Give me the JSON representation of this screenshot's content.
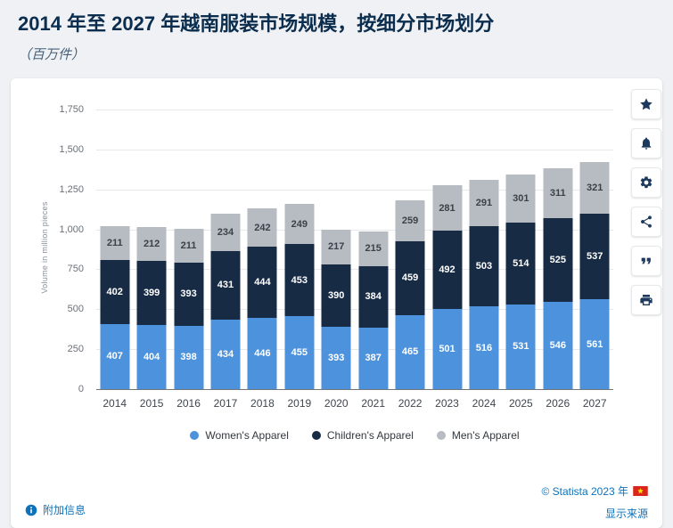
{
  "header": {
    "title": "2014 年至 2027 年越南服装市场规模，按细分市场划分",
    "subtitle": "（百万件）"
  },
  "chart_data": {
    "type": "bar",
    "stacked": true,
    "title": "2014 年至 2027 年越南服装市场规模，按细分市场划分",
    "subtitle": "（百万件）",
    "xlabel": "",
    "ylabel": "Volume in million pieces",
    "ylim": [
      0,
      1750
    ],
    "ytick_step": 250,
    "yticks": [
      "0",
      "250",
      "500",
      "750",
      "1,000",
      "1,250",
      "1,500",
      "1,750"
    ],
    "grid": true,
    "legend_position": "bottom",
    "categories": [
      "2014",
      "2015",
      "2016",
      "2017",
      "2018",
      "2019",
      "2020",
      "2021",
      "2022",
      "2023",
      "2024",
      "2025",
      "2026",
      "2027"
    ],
    "series": [
      {
        "name": "Women's Apparel",
        "color": "#4c92dc",
        "label_color": "#ffffff",
        "values": [
          407,
          404,
          398,
          434,
          446,
          455,
          393,
          387,
          465,
          501,
          516,
          531,
          546,
          561
        ]
      },
      {
        "name": "Children's Apparel",
        "color": "#182b45",
        "label_color": "#ffffff",
        "values": [
          402,
          399,
          393,
          431,
          444,
          453,
          390,
          384,
          459,
          492,
          503,
          514,
          525,
          537
        ]
      },
      {
        "name": "Men's Apparel",
        "color": "#b7bbc2",
        "label_color": "#3c4148",
        "values": [
          211,
          212,
          211,
          234,
          242,
          249,
          217,
          215,
          259,
          281,
          291,
          301,
          311,
          321
        ]
      }
    ]
  },
  "footer": {
    "additional_info": "附加信息",
    "copyright": "© Statista 2023 年",
    "show_source": "显示来源"
  },
  "toolbar": {
    "icons": [
      "star-icon",
      "bell-icon",
      "gear-icon",
      "share-icon",
      "quote-icon",
      "print-icon"
    ]
  },
  "colors": {
    "accent_link": "#0d72b9",
    "title_text": "#0b2d4e",
    "card_background": "#ffffff",
    "page_background": "#f0f1f4"
  }
}
